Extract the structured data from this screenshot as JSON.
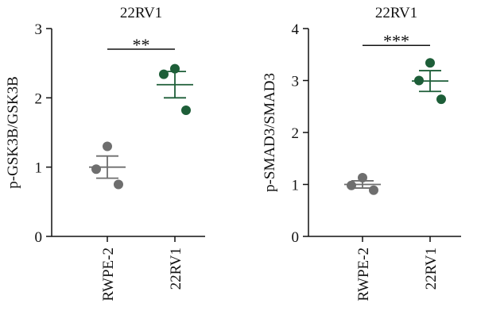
{
  "chart_data": [
    {
      "type": "dot",
      "title": "22RV1",
      "y_label": "p-GSK3B/GSK3B",
      "categories": [
        "RWPE-2",
        "22RV1"
      ],
      "points": [
        [
          1.3,
          0.97,
          0.75
        ],
        [
          2.42,
          2.34,
          1.82
        ]
      ],
      "means": [
        1.0,
        2.19
      ],
      "errors": [
        0.16,
        0.19
      ],
      "colors": [
        "#6e6e6e",
        "#1d5e38"
      ],
      "significance": "**",
      "ylim": [
        0,
        3
      ],
      "yticks": [
        0,
        1,
        2,
        3
      ]
    },
    {
      "type": "dot",
      "title": "22RV1",
      "y_label": "p-SMAD3/SMAD3",
      "categories": [
        "RWPE-2",
        "22RV1"
      ],
      "points": [
        [
          1.13,
          0.98,
          0.89
        ],
        [
          3.34,
          3.0,
          2.64
        ]
      ],
      "means": [
        1.0,
        2.99
      ],
      "errors": [
        0.07,
        0.2
      ],
      "colors": [
        "#6e6e6e",
        "#1d5e38"
      ],
      "significance": "***",
      "ylim": [
        0,
        4
      ],
      "yticks": [
        0,
        1,
        2,
        3,
        4
      ]
    }
  ]
}
